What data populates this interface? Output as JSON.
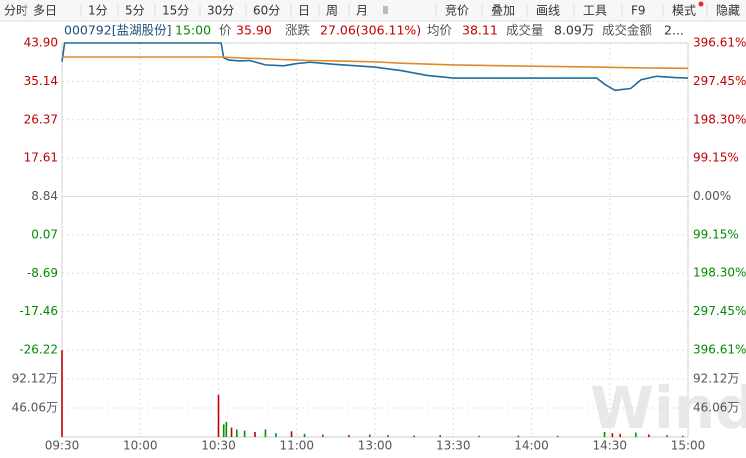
{
  "toolbar": {
    "left": [
      "分时",
      "多日",
      "1分",
      "5分",
      "15分",
      "30分",
      "60分",
      "日",
      "周",
      "月"
    ],
    "right": [
      "竞价",
      "叠加",
      "画线",
      "工具",
      "F9",
      "模式",
      "隐藏"
    ]
  },
  "quote": {
    "code": "000792[盐湖股份]",
    "time": "15:00",
    "price_label": "价",
    "price": "35.90",
    "change_label": "涨跌",
    "change": "27.06(306.11%)",
    "avg_label": "均价",
    "avg": "38.11",
    "volume_label": "成交量",
    "volume": "8.09万",
    "amount_label": "成交金额",
    "amount": "2..."
  },
  "watermark": "Wind",
  "chart_data": [
    {
      "type": "line",
      "up_color": "#c00000",
      "down_color": "#008c00",
      "flat_color": "#555555",
      "grid": true,
      "x": [
        "09:30",
        "09:31",
        "10:31",
        "10:32",
        "10:34",
        "10:38",
        "10:42",
        "10:48",
        "10:55",
        "11:00",
        "11:05",
        "11:15",
        "11:30",
        "13:10",
        "13:20",
        "13:30",
        "14:00",
        "14:25",
        "14:28",
        "14:32",
        "14:38",
        "14:42",
        "14:48",
        "14:55",
        "15:00"
      ],
      "series": [
        {
          "color": "#1f6c9c",
          "values": [
            39.6,
            43.9,
            43.9,
            40.5,
            40.0,
            39.8,
            39.9,
            38.9,
            38.7,
            39.2,
            39.5,
            39.0,
            38.4,
            37.6,
            36.5,
            35.9,
            35.9,
            35.9,
            34.5,
            33.1,
            33.5,
            35.5,
            36.3,
            36.0,
            35.9
          ]
        },
        {
          "color": "#e08a2c",
          "values": [
            40.7,
            40.7,
            40.7,
            40.65,
            40.6,
            40.5,
            40.4,
            40.3,
            40.1,
            40.0,
            39.9,
            39.8,
            39.6,
            39.3,
            39.1,
            38.9,
            38.6,
            38.4,
            38.38,
            38.32,
            38.26,
            38.22,
            38.18,
            38.14,
            38.11
          ]
        }
      ],
      "xticks": [
        "09:30",
        "10:00",
        "10:30",
        "11:00",
        "13:00",
        "13:30",
        "14:00",
        "14:30",
        "15:00"
      ],
      "ylim": [
        -26.22,
        43.9
      ],
      "yticks": [
        {
          "value": 43.9,
          "label": "43.90"
        },
        {
          "value": 35.14,
          "label": "35.14"
        },
        {
          "value": 26.37,
          "label": "26.37"
        },
        {
          "value": 17.61,
          "label": "17.61"
        },
        {
          "value": 8.84,
          "label": "8.84"
        },
        {
          "value": 0.07,
          "label": "0.07"
        },
        {
          "value": -8.69,
          "label": "-8.69"
        },
        {
          "value": -17.46,
          "label": "-17.46"
        },
        {
          "value": -26.22,
          "label": "-26.22"
        }
      ],
      "y2lim": [
        -396.61,
        396.61
      ],
      "y2ticks": [
        {
          "value": 396.61,
          "label": "396.61%"
        },
        {
          "value": 297.45,
          "label": "297.45%"
        },
        {
          "value": 198.3,
          "label": "198.30%"
        },
        {
          "value": 99.15,
          "label": "99.15%"
        },
        {
          "value": 0,
          "label": "0.00%"
        },
        {
          "value": -99.15,
          "label": "99.15%"
        },
        {
          "value": -198.3,
          "label": "198.30%"
        },
        {
          "value": -297.45,
          "label": "297.45%"
        },
        {
          "value": -396.61,
          "label": "396.61%"
        }
      ]
    },
    {
      "type": "bar",
      "x": [
        "09:30",
        "10:30",
        "10:32",
        "10:33",
        "10:35",
        "10:37",
        "10:40",
        "10:44",
        "10:48",
        "10:52",
        "10:58",
        "11:03",
        "11:10",
        "11:20",
        "11:28",
        "13:05",
        "13:15",
        "13:25",
        "13:40",
        "13:55",
        "14:10",
        "14:28",
        "14:31",
        "14:34",
        "14:40",
        "14:45",
        "14:52",
        "14:58"
      ],
      "values": [
        138,
        67,
        20,
        24,
        15,
        12,
        10,
        8,
        12,
        6,
        9,
        5,
        4,
        3,
        4,
        3,
        2,
        3,
        2,
        2,
        2,
        8,
        6,
        5,
        7,
        4,
        3,
        2
      ],
      "colors": [
        "#c00000",
        "#c00000",
        "#008c00",
        "#008c00",
        "#c00000",
        "#008c00",
        "#008c00",
        "#c00000",
        "#008c00",
        "#008c00",
        "#c00000",
        "#008c00",
        "#008c00",
        "#c00000",
        "#008c00",
        "#008c00",
        "#c00000",
        "#008c00",
        "#008c00",
        "#c00000",
        "#008c00",
        "#008c00",
        "#c00000",
        "#c00000",
        "#008c00",
        "#c00000",
        "#008c00",
        "#008c00"
      ],
      "ylim": [
        0,
        138.18
      ],
      "yticks": [
        {
          "value": 92.12,
          "label": "92.12万"
        },
        {
          "value": 46.06,
          "label": "46.06万"
        }
      ]
    }
  ]
}
